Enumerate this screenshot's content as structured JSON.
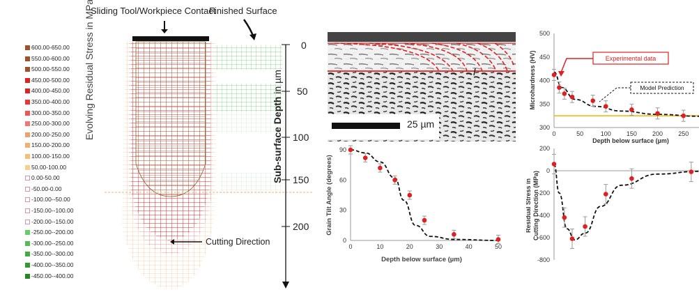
{
  "top_labels": {
    "contact": "Sliding Tool/Workpiece Contact",
    "finished": "Finished Surface"
  },
  "legend": {
    "title": "Evolving Residual Stress in MPa",
    "items": [
      {
        "label": "600.00-650.00",
        "color": "#a0522d"
      },
      {
        "label": "550.00-600.00",
        "color": "#a0522d"
      },
      {
        "label": "500.00-550.00",
        "color": "#a0522d"
      },
      {
        "label": "450.00-500.00",
        "color": "#d22"
      },
      {
        "label": "400.00-450.00",
        "color": "#d22"
      },
      {
        "label": "350.00-400.00",
        "color": "#e33"
      },
      {
        "label": "300.00-350.00",
        "color": "#e55"
      },
      {
        "label": "250.00-300.00",
        "color": "#e77"
      },
      {
        "label": "200.00-250.00",
        "color": "#f0a070"
      },
      {
        "label": "150.00-200.00",
        "color": "#f0b070"
      },
      {
        "label": "100.00-150.00",
        "color": "#f2c070"
      },
      {
        "label": "50.00-100.00",
        "color": "#f5d090"
      },
      {
        "label": "0.00-50.00",
        "color": "#ffffff"
      },
      {
        "label": "-50.00-0.00",
        "color": "#ffffff"
      },
      {
        "label": "-100.00--50.00",
        "color": "#ffffff"
      },
      {
        "label": "-150.00--100.00",
        "color": "#ffffff"
      },
      {
        "label": "-200.00--150.00",
        "color": "#ffffff"
      },
      {
        "label": "-250.00--200.00",
        "color": "#6c6"
      },
      {
        "label": "-300.00--250.00",
        "color": "#5b5"
      },
      {
        "label": "-350.00--300.00",
        "color": "#4a4"
      },
      {
        "label": "-400.00--350.00",
        "color": "#393"
      },
      {
        "label": "-450.00--400.00",
        "color": "#282"
      }
    ]
  },
  "depth_axis": {
    "label_bold": "Sub-surface Depth",
    "label_unit": " in µm",
    "ticks": [
      "0",
      "50",
      "100",
      "150",
      "200"
    ]
  },
  "cutting_direction": "Cutting Direction",
  "micrograph": {
    "scale_label": "25 µm"
  },
  "colors": {
    "accent_red": "#e02020",
    "yellow_line": "#f0b400",
    "micro_dark": "#444444"
  },
  "charts": {
    "grain_tilt": {
      "type": "scatter",
      "ylabel": "Grain Tilt Angle (degrees)",
      "xlabel": "Depth below surface (µm)",
      "x_ticks": [
        "0",
        "10",
        "20",
        "30",
        "40",
        "50"
      ],
      "y_ticks": [
        "0",
        "30",
        "60",
        "90"
      ],
      "xlim": [
        0,
        50
      ],
      "ylim": [
        0,
        90
      ],
      "points": [
        {
          "x": 0,
          "y": 90
        },
        {
          "x": 5,
          "y": 82
        },
        {
          "x": 10,
          "y": 72
        },
        {
          "x": 15,
          "y": 60
        },
        {
          "x": 20,
          "y": 45
        },
        {
          "x": 25,
          "y": 20
        },
        {
          "x": 35,
          "y": 6
        },
        {
          "x": 50,
          "y": 1
        }
      ],
      "model_curve": [
        {
          "x": 0,
          "y": 90
        },
        {
          "x": 5,
          "y": 87
        },
        {
          "x": 10,
          "y": 78
        },
        {
          "x": 15,
          "y": 62
        },
        {
          "x": 18,
          "y": 40
        },
        {
          "x": 22,
          "y": 15
        },
        {
          "x": 27,
          "y": 4
        },
        {
          "x": 35,
          "y": 1
        },
        {
          "x": 50,
          "y": 0
        }
      ]
    },
    "microhardness": {
      "type": "scatter",
      "ylabel": "Microhardness (HV)",
      "xlabel": "Depth below surface (µm)",
      "x_ticks": [
        "0",
        "50",
        "100",
        "150",
        "200",
        "250"
      ],
      "y_ticks": [
        "300",
        "350",
        "400",
        "450",
        "500"
      ],
      "xlim": [
        0,
        280
      ],
      "ylim": [
        300,
        500
      ],
      "points": [
        {
          "x": 0,
          "y": 412
        },
        {
          "x": 10,
          "y": 385
        },
        {
          "x": 20,
          "y": 372
        },
        {
          "x": 35,
          "y": 365
        },
        {
          "x": 75,
          "y": 357
        },
        {
          "x": 100,
          "y": 345
        },
        {
          "x": 150,
          "y": 338
        },
        {
          "x": 200,
          "y": 330
        },
        {
          "x": 250,
          "y": 325
        }
      ],
      "model_curve": [
        {
          "x": 0,
          "y": 418
        },
        {
          "x": 15,
          "y": 385
        },
        {
          "x": 40,
          "y": 360
        },
        {
          "x": 80,
          "y": 345
        },
        {
          "x": 130,
          "y": 335
        },
        {
          "x": 200,
          "y": 328
        },
        {
          "x": 280,
          "y": 324
        }
      ],
      "baseline": 325,
      "annotations": {
        "experimental": "Experimental data",
        "model": "Model Prediction"
      }
    },
    "residual_stress": {
      "type": "scatter",
      "ylabel_line1": "Residual Stress in",
      "ylabel_line2": "Cutting Direction (MPa)",
      "y_ticks": [
        "200",
        "0",
        "-200",
        "-400",
        "-600",
        "-800"
      ],
      "xlim": [
        0,
        280
      ],
      "ylim": [
        -800,
        200
      ],
      "points": [
        {
          "x": 0,
          "y": 60
        },
        {
          "x": 20,
          "y": -420
        },
        {
          "x": 35,
          "y": -610
        },
        {
          "x": 60,
          "y": -500
        },
        {
          "x": 100,
          "y": -210
        },
        {
          "x": 150,
          "y": -70
        },
        {
          "x": 265,
          "y": -10
        }
      ],
      "model_curve": [
        {
          "x": 0,
          "y": 60
        },
        {
          "x": 10,
          "y": -200
        },
        {
          "x": 25,
          "y": -520
        },
        {
          "x": 40,
          "y": -620
        },
        {
          "x": 60,
          "y": -560
        },
        {
          "x": 90,
          "y": -320
        },
        {
          "x": 130,
          "y": -130
        },
        {
          "x": 200,
          "y": -30
        },
        {
          "x": 280,
          "y": -5
        }
      ]
    }
  }
}
